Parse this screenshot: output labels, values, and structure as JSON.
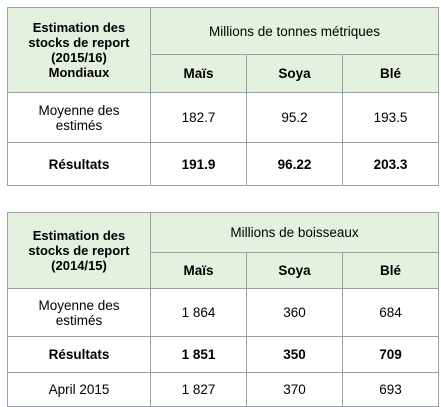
{
  "table1": {
    "title_lines": [
      "Estimation des",
      "stocks de report",
      "(2015/16)",
      "Mondiaux"
    ],
    "unit": "Millions de tonnes métriques",
    "columns": [
      "Maïs",
      "Soya",
      "Blé"
    ],
    "rows": [
      {
        "label_lines": [
          "Moyenne des",
          "estimés"
        ],
        "values": [
          "182.7",
          "95.2",
          "193.5"
        ],
        "bold": false
      },
      {
        "label_lines": [
          "Résultats"
        ],
        "values": [
          "191.9",
          "96.22",
          "203.3"
        ],
        "bold": true
      }
    ]
  },
  "table2": {
    "title_lines": [
      "Estimation des",
      "stocks de report",
      "(2014/15)"
    ],
    "unit": "Millions de boisseaux",
    "columns": [
      "Maïs",
      "Soya",
      "Blé"
    ],
    "rows": [
      {
        "label_lines": [
          "Moyenne des",
          "estimés"
        ],
        "values": [
          "1 864",
          "360",
          "684"
        ],
        "bold": false
      },
      {
        "label_lines": [
          "Résultats"
        ],
        "values": [
          "1 851",
          "350",
          "709"
        ],
        "bold": true
      },
      {
        "label_lines": [
          "April 2015"
        ],
        "values": [
          "1 827",
          "370",
          "693"
        ],
        "bold": false
      }
    ]
  }
}
